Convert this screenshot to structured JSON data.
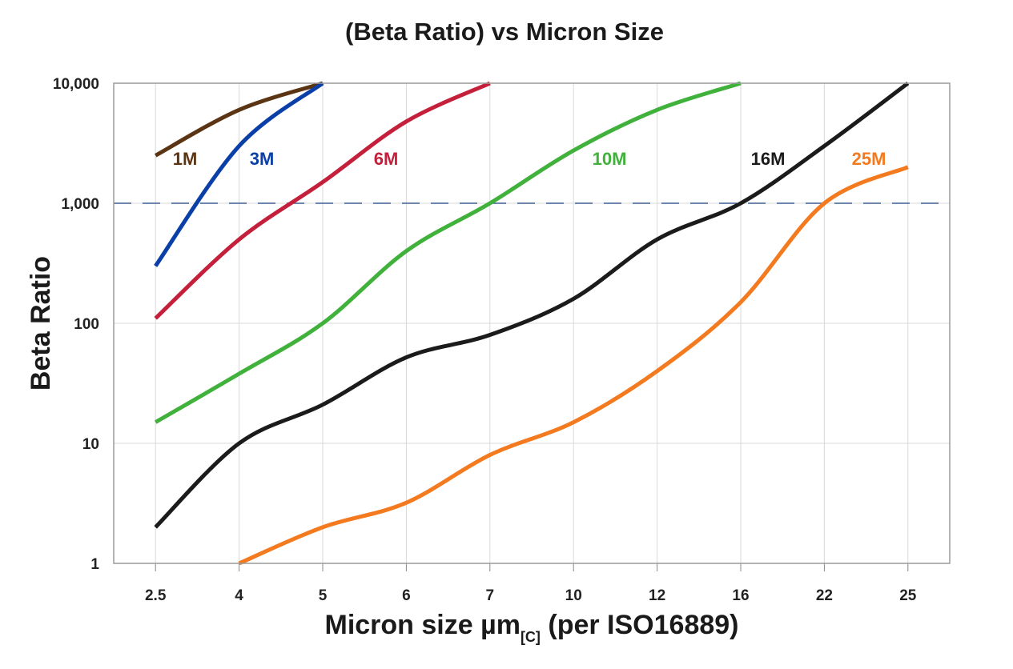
{
  "chart_data": {
    "type": "line",
    "title": "(Beta Ratio) vs Micron Size",
    "xlabel": "Micron size µm",
    "xlabel_subscript": "[C]",
    "xlabel_suffix": " (per ISO16889)",
    "ylabel": "Beta Ratio",
    "y_scale": "log",
    "ylim": [
      1,
      10000
    ],
    "yticks": [
      1,
      10,
      100,
      1000,
      10000
    ],
    "ytick_labels": [
      "1",
      "10",
      "100",
      "1,000",
      "10,000"
    ],
    "categories": [
      "2.5",
      "4",
      "5",
      "6",
      "7",
      "10",
      "12",
      "16",
      "22",
      "25"
    ],
    "grid": true,
    "reference_line": {
      "y": 1000,
      "style": "dashed",
      "color": "#3d5f93"
    },
    "series": [
      {
        "name": "1M",
        "color": "#5b3413",
        "values": [
          2500,
          6000,
          10000,
          null,
          null,
          null,
          null,
          null,
          null,
          null
        ]
      },
      {
        "name": "3M",
        "color": "#0b3fa8",
        "values": [
          300,
          3000,
          10000,
          null,
          null,
          null,
          null,
          null,
          null,
          null
        ]
      },
      {
        "name": "6M",
        "color": "#c5203b",
        "values": [
          110,
          500,
          1500,
          4800,
          10000,
          null,
          null,
          null,
          null,
          null
        ]
      },
      {
        "name": "10M",
        "color": "#40b13b",
        "values": [
          15,
          38,
          100,
          400,
          1000,
          2750,
          6000,
          10000,
          null,
          null
        ]
      },
      {
        "name": "16M",
        "color": "#1b1b1b",
        "values": [
          2,
          10,
          21,
          52,
          80,
          160,
          500,
          1000,
          3000,
          10000
        ]
      },
      {
        "name": "25M",
        "color": "#f47a1f",
        "values": [
          null,
          1,
          2,
          3.2,
          8,
          15,
          40,
          150,
          1000,
          2000
        ]
      }
    ]
  }
}
